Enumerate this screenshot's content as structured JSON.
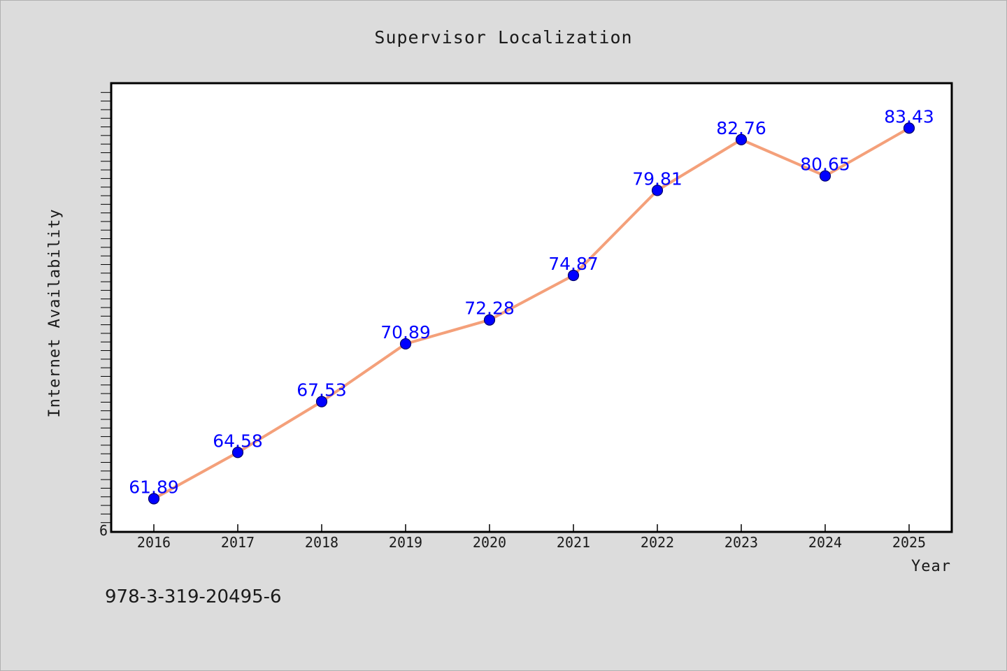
{
  "chart_data": {
    "type": "line",
    "title": "Supervisor Localization",
    "xlabel": "Year",
    "ylabel": "Internet Availability",
    "categories": [
      "2016",
      "2017",
      "2018",
      "2019",
      "2020",
      "2021",
      "2022",
      "2023",
      "2024",
      "2025"
    ],
    "series": [
      {
        "values": [
          61.89,
          64.58,
          67.53,
          70.89,
          72.28,
          74.87,
          79.81,
          82.76,
          80.65,
          83.43
        ],
        "data_labels": [
          "61.89",
          "64.58",
          "67.53",
          "70.89",
          "72.28",
          "74.87",
          "79.81",
          "82.76",
          "80.65",
          "83.43"
        ]
      }
    ],
    "ylim": [
      60,
      86
    ],
    "y_tick_labels": [
      {
        "value": 60,
        "label": "6"
      }
    ],
    "line_color": "#f4a07a",
    "marker_color": "#0000ff",
    "label_color": "#0000ff",
    "grid": false
  },
  "footer_text": "978-3-319-20495-6"
}
